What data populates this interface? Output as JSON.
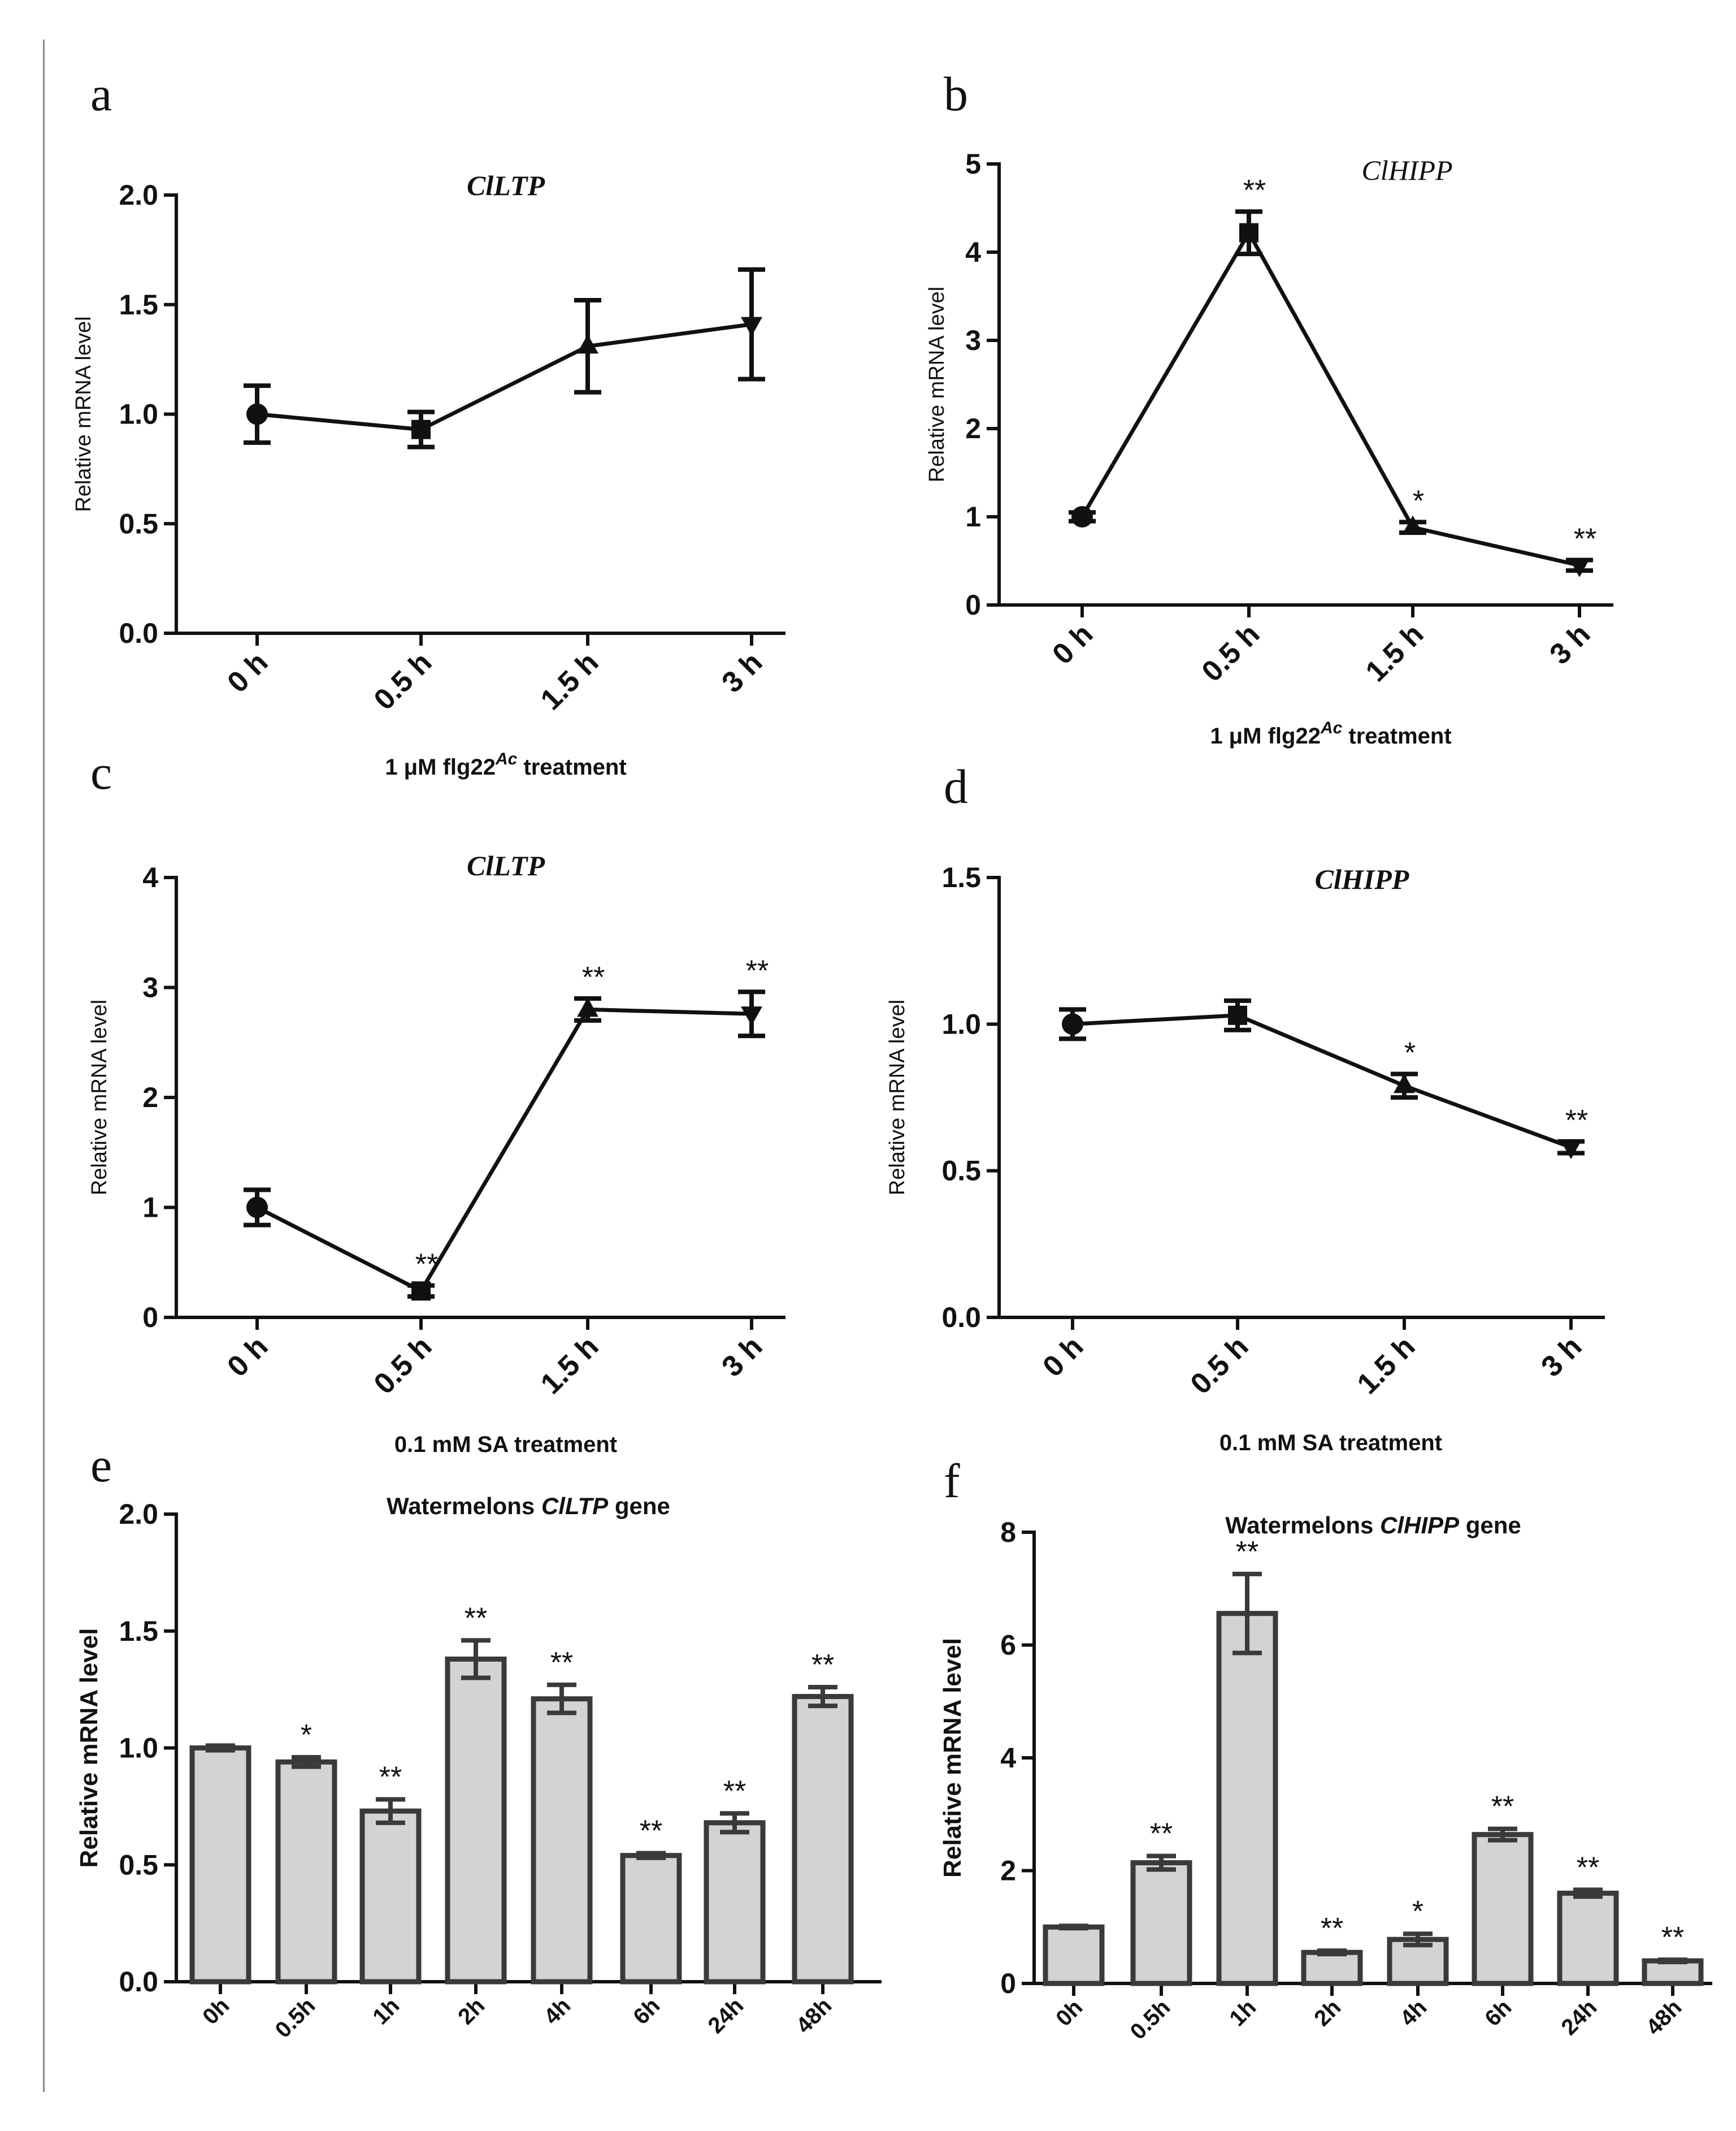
{
  "chart_data": [
    {
      "panel": "a",
      "type": "line",
      "title": "ClLTP",
      "xlabel_prefix": "1 μM flg22",
      "xlabel_sup": "Ac",
      "xlabel_suffix": " treatment",
      "ylabel": "Relative mRNA level",
      "categories": [
        "0 h",
        "0.5 h",
        "1.5 h",
        "3 h"
      ],
      "values": [
        1.0,
        0.93,
        1.31,
        1.41
      ],
      "errors": [
        0.13,
        0.08,
        0.21,
        0.25
      ],
      "markers": [
        "circle",
        "square",
        "triangle-up",
        "triangle-down"
      ],
      "significance": [
        "",
        "",
        "",
        ""
      ],
      "ylim": [
        0,
        2
      ],
      "yticks": [
        "0.0",
        "0.5",
        "1.0",
        "1.5",
        "2.0"
      ],
      "ytick_values": [
        0,
        0.5,
        1.0,
        1.5,
        2.0
      ]
    },
    {
      "panel": "b",
      "type": "line",
      "title": "ClHIPP",
      "xlabel_prefix": "1 μM flg22",
      "xlabel_sup": "Ac",
      "xlabel_suffix": " treatment",
      "ylabel": "Relative mRNA level",
      "categories": [
        "0 h",
        "0.5 h",
        "1.5 h",
        "3 h"
      ],
      "values": [
        1.0,
        4.22,
        0.88,
        0.45
      ],
      "errors": [
        0.05,
        0.24,
        0.06,
        0.06
      ],
      "markers": [
        "circle",
        "square",
        "triangle-up",
        "triangle-down"
      ],
      "significance": [
        "",
        "**",
        "*",
        "**"
      ],
      "ylim": [
        0,
        5
      ],
      "yticks": [
        "0",
        "1",
        "2",
        "3",
        "4",
        "5"
      ],
      "ytick_values": [
        0,
        1,
        2,
        3,
        4,
        5
      ]
    },
    {
      "panel": "c",
      "type": "line",
      "title": "ClLTP",
      "xlabel": "0.1 mM SA treatment",
      "ylabel": "Relative mRNA level",
      "categories": [
        "0 h",
        "0.5 h",
        "1.5 h",
        "3 h"
      ],
      "values": [
        1.0,
        0.24,
        2.8,
        2.76
      ],
      "errors": [
        0.16,
        0.05,
        0.1,
        0.2
      ],
      "markers": [
        "circle",
        "square",
        "triangle-up",
        "triangle-down"
      ],
      "significance": [
        "",
        "**",
        "**",
        "**"
      ],
      "ylim": [
        0,
        4
      ],
      "yticks": [
        "0",
        "1",
        "2",
        "3",
        "4"
      ],
      "ytick_values": [
        0,
        1,
        2,
        3,
        4
      ]
    },
    {
      "panel": "d",
      "type": "line",
      "title": "ClHIPP",
      "xlabel": "0.1 mM SA treatment",
      "ylabel": "Relative mRNA level",
      "categories": [
        "0 h",
        "0.5 h",
        "1.5 h",
        "3 h"
      ],
      "values": [
        1.0,
        1.03,
        0.79,
        0.58
      ],
      "errors": [
        0.05,
        0.05,
        0.04,
        0.02
      ],
      "markers": [
        "circle",
        "square",
        "triangle-up",
        "triangle-down"
      ],
      "significance": [
        "",
        "",
        "*",
        "**"
      ],
      "ylim": [
        0,
        1.5
      ],
      "yticks": [
        "0.0",
        "0.5",
        "1.0",
        "1.5"
      ],
      "ytick_values": [
        0,
        0.5,
        1.0,
        1.5
      ]
    },
    {
      "panel": "e",
      "type": "bar",
      "title_prefix": "Watermelons ",
      "title_gene": "ClLTP",
      "title_suffix": " gene",
      "ylabel": "Relative mRNA level",
      "categories": [
        "0h",
        "0.5h",
        "1h",
        "2h",
        "4h",
        "6h",
        "24h",
        "48h"
      ],
      "values": [
        1.0,
        0.94,
        0.73,
        1.38,
        1.21,
        0.54,
        0.68,
        1.22
      ],
      "errors": [
        0.01,
        0.02,
        0.05,
        0.08,
        0.06,
        0.01,
        0.04,
        0.04
      ],
      "significance": [
        "",
        "*",
        "**",
        "**",
        "**",
        "**",
        "**",
        "**"
      ],
      "ylim": [
        0,
        2
      ],
      "yticks": [
        "0.0",
        "0.5",
        "1.0",
        "1.5",
        "2.0"
      ],
      "ytick_values": [
        0,
        0.5,
        1.0,
        1.5,
        2.0
      ]
    },
    {
      "panel": "f",
      "type": "bar",
      "title_prefix": "Watermelons ",
      "title_gene": "ClHIPP",
      "title_suffix": " gene",
      "ylabel": "Relative mRNA level",
      "categories": [
        "0h",
        "0.5h",
        "1h",
        "2h",
        "4h",
        "6h",
        "24h",
        "48h"
      ],
      "values": [
        1.0,
        2.14,
        6.56,
        0.55,
        0.78,
        2.64,
        1.6,
        0.4
      ],
      "errors": [
        0.02,
        0.12,
        0.7,
        0.03,
        0.1,
        0.1,
        0.06,
        0.02
      ],
      "significance": [
        "",
        "**",
        "**",
        "**",
        "*",
        "**",
        "**",
        "**"
      ],
      "ylim": [
        0,
        8
      ],
      "yticks": [
        "0",
        "2",
        "4",
        "6",
        "8"
      ],
      "ytick_values": [
        0,
        2,
        4,
        6,
        8
      ]
    }
  ]
}
